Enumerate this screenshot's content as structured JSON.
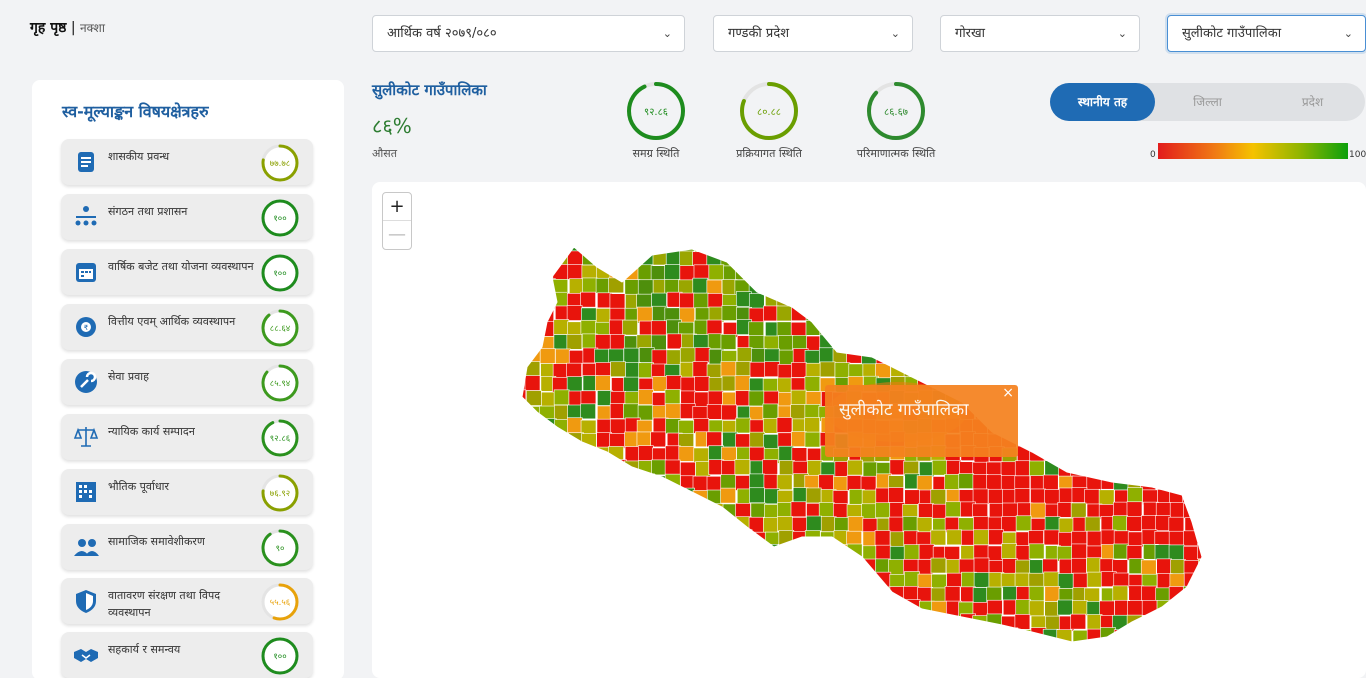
{
  "breadcrumb": {
    "home": "गृह पृष्ठ",
    "separator": "|",
    "current": "नक्शा"
  },
  "filters": {
    "fiscal_year": "आर्थिक वर्ष २०७९/०८०",
    "province": "गण्डकी प्रदेश",
    "district": "गोरखा",
    "municipality": "सुलीकोट गाउँपालिका"
  },
  "sidebar": {
    "title": "स्व-मूल्याङ्कन विषयक्षेत्रहरु",
    "items": [
      {
        "label": "शासकीय प्रवन्ध",
        "score": "७७.७८",
        "value": 77.78,
        "color": "#8aa000",
        "icon": "document-icon"
      },
      {
        "label": "संगठन तथा प्रशासन",
        "score": "१००",
        "value": 100,
        "color": "#1e8c1e",
        "icon": "org-chart-icon"
      },
      {
        "label": "वार्षिक बजेट तथा योजना व्यवस्थापन",
        "score": "१००",
        "value": 100,
        "color": "#1e8c1e",
        "icon": "calendar-icon"
      },
      {
        "label": "वित्तीय एवम् आर्थिक व्यवस्थापन",
        "score": "८८.६४",
        "value": 88.64,
        "color": "#3d9a1e",
        "icon": "finance-gear-icon"
      },
      {
        "label": "सेवा प्रवाह",
        "score": "८५.९४",
        "value": 85.94,
        "color": "#3d9a1e",
        "icon": "wrench-icon"
      },
      {
        "label": "न्यायिक कार्य सम्पादन",
        "score": "९२.८६",
        "value": 92.86,
        "color": "#2a911e",
        "icon": "scales-icon"
      },
      {
        "label": "भौतिक पूर्वाधार",
        "score": "७६.९२",
        "value": 76.92,
        "color": "#8aa000",
        "icon": "building-icon"
      },
      {
        "label": "सामाजिक समावेशीकरण",
        "score": "९०",
        "value": 90,
        "color": "#2a911e",
        "icon": "people-icon"
      },
      {
        "label": "वातावरण संरक्षण तथा विपद व्यवस्थापन",
        "score": "५५.५६",
        "value": 55.56,
        "color": "#e8a20a",
        "icon": "shield-icon"
      },
      {
        "label": "सहकार्य र समन्वय",
        "score": "१००",
        "value": 100,
        "color": "#1e8c1e",
        "icon": "handshake-icon"
      }
    ]
  },
  "summary": {
    "name": "सुलीकोट गाउँपालिका",
    "percent": "८६%",
    "avg_label": "औसत",
    "stats": [
      {
        "score": "९२.८६",
        "value": 92.86,
        "label": "समग्र स्थिति",
        "color": "#1e8c1e"
      },
      {
        "score": "८०.८८",
        "value": 80.88,
        "label": "प्रक्रियागत स्थिति",
        "color": "#6a9e00"
      },
      {
        "score": "८६.६७",
        "value": 86.67,
        "label": "परिमाणात्मक स्थिति",
        "color": "#2e8a2e"
      }
    ]
  },
  "level_toggle": {
    "options": [
      "स्थानीय तह",
      "जिल्ला",
      "प्रदेश"
    ],
    "selected": "स्थानीय तह"
  },
  "legend": {
    "min": "0",
    "max": "100",
    "colors": [
      "#e21c1c",
      "#f07a14",
      "#f5c200",
      "#8fb500",
      "#0ca00c"
    ]
  },
  "map": {
    "zoom_in": "+",
    "zoom_out": "—",
    "popup_text": "सुलीकोट गाउँपालिका",
    "popup_close": "×",
    "popup_color": "#f5821f"
  }
}
